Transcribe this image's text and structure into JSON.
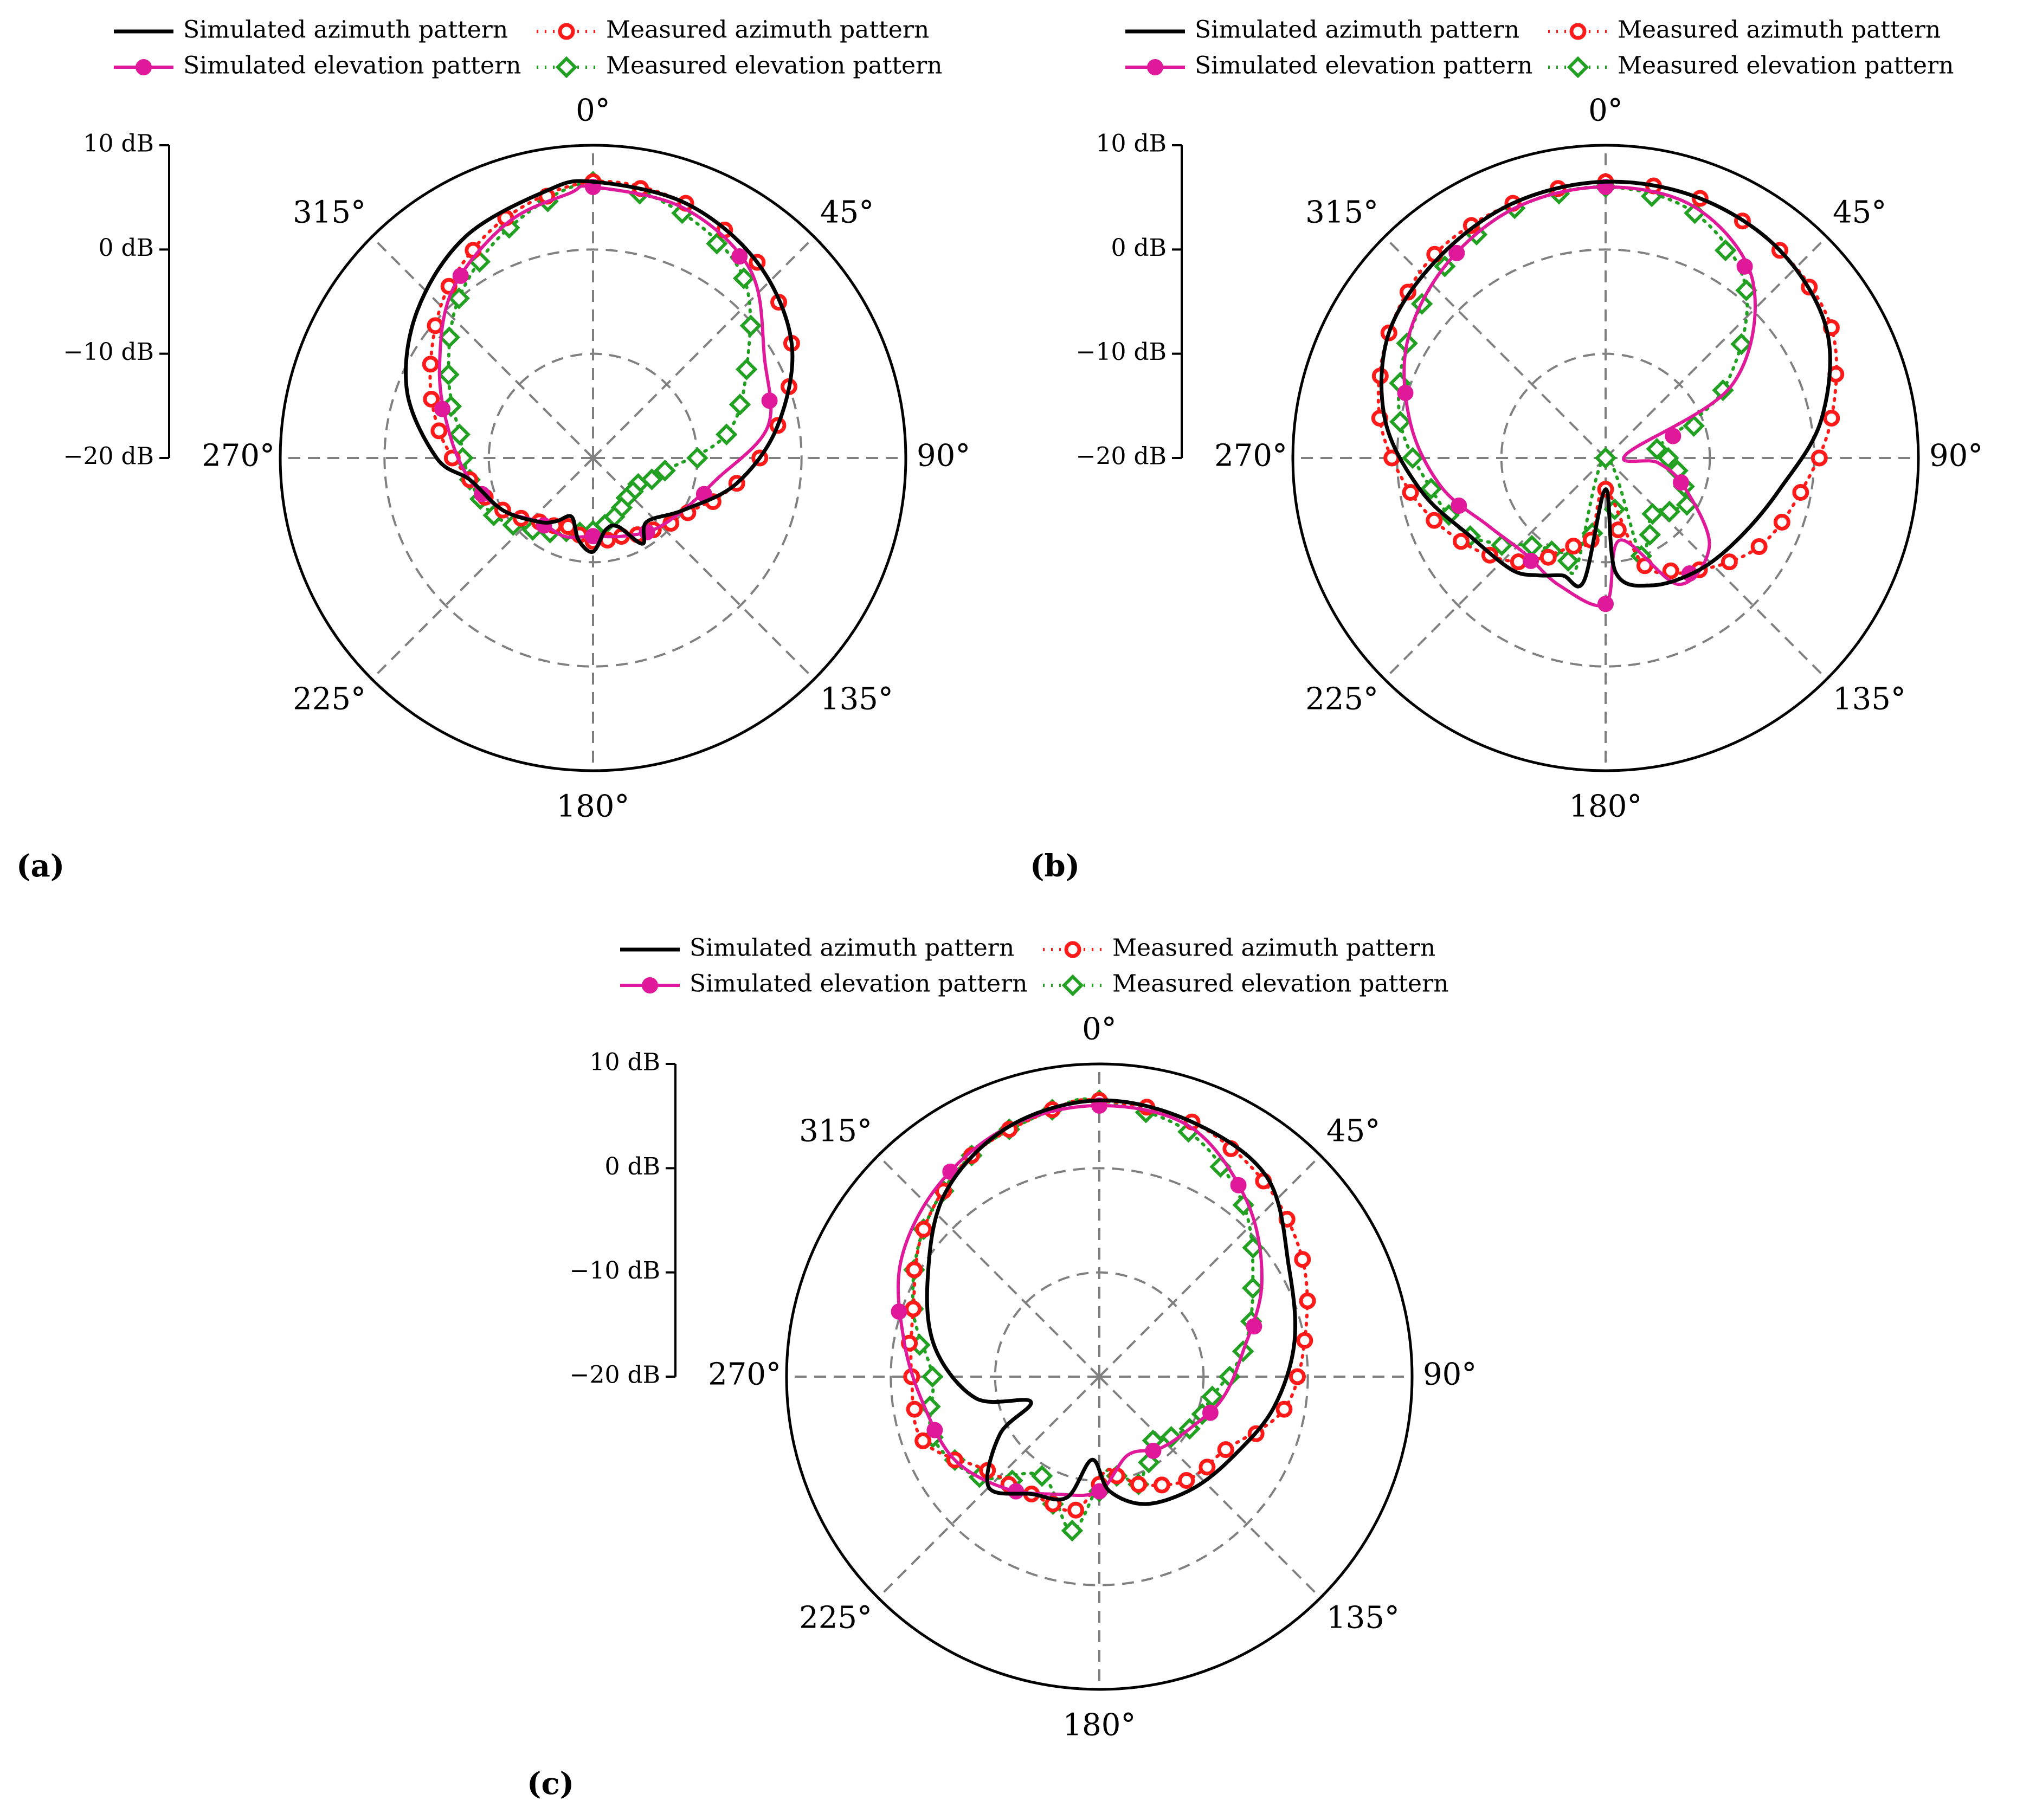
{
  "legend": {
    "sim_az": "Simulated azimuth pattern",
    "sim_el": "Simulated elevation pattern",
    "meas_az": "Measured azimuth pattern",
    "meas_el": "Measured elevation pattern"
  },
  "colors": {
    "sim_az": "#000000",
    "sim_el": "#e0199a",
    "meas_az": "#ff1a1a",
    "meas_el": "#22a022",
    "grid": "#808080"
  },
  "chart_data": [
    {
      "panel": "(a)",
      "type": "polar-line",
      "r_axis": {
        "min_db": -20,
        "max_db": 10,
        "ticks": [
          "10 dB",
          "0 dB",
          "−10 dB",
          "−20 dB"
        ]
      },
      "angle_ticks": [
        "0°",
        "45°",
        "90°",
        "135°",
        "180°",
        "225°",
        "270°",
        "315°"
      ],
      "series": [
        {
          "key": "sim_az",
          "points": [
            [
              0,
              6.5
            ],
            [
              20,
              6
            ],
            [
              40,
              4.5
            ],
            [
              60,
              2
            ],
            [
              80,
              -2
            ],
            [
              100,
              -6
            ],
            [
              120,
              -10
            ],
            [
              140,
              -12
            ],
            [
              150,
              -10.5
            ],
            [
              160,
              -13
            ],
            [
              170,
              -13
            ],
            [
              180,
              -11
            ],
            [
              190,
              -12
            ],
            [
              200,
              -14
            ],
            [
              210,
              -13
            ],
            [
              220,
              -12
            ],
            [
              240,
              -10
            ],
            [
              260,
              -8
            ],
            [
              270,
              -5
            ],
            [
              290,
              -1
            ],
            [
              310,
              2
            ],
            [
              330,
              4.5
            ],
            [
              350,
              6
            ]
          ]
        },
        {
          "key": "sim_el",
          "points": [
            [
              0,
              6
            ],
            [
              20,
              5.5
            ],
            [
              40,
              3.5
            ],
            [
              60,
              -1
            ],
            [
              80,
              -3
            ],
            [
              100,
              -8
            ],
            [
              120,
              -10
            ],
            [
              140,
              -11
            ],
            [
              160,
              -12
            ],
            [
              180,
              -12.5
            ],
            [
              200,
              -12
            ],
            [
              220,
              -12
            ],
            [
              240,
              -10
            ],
            [
              260,
              -8
            ],
            [
              280,
              -6
            ],
            [
              300,
              -3
            ],
            [
              320,
              1
            ],
            [
              340,
              4
            ],
            [
              355,
              5.5
            ]
          ]
        },
        {
          "key": "meas_az",
          "points": [
            [
              0,
              6.5
            ],
            [
              20,
              6
            ],
            [
              40,
              4.5
            ],
            [
              60,
              2
            ],
            [
              80,
              -2
            ],
            [
              100,
              -6
            ],
            [
              120,
              -9.5
            ],
            [
              140,
              -11
            ],
            [
              160,
              -12
            ],
            [
              180,
              -12
            ],
            [
              200,
              -13
            ],
            [
              220,
              -12
            ],
            [
              240,
              -10
            ],
            [
              260,
              -8
            ],
            [
              280,
              -5
            ],
            [
              300,
              -2
            ],
            [
              320,
              1.5
            ],
            [
              340,
              4.5
            ]
          ]
        },
        {
          "key": "meas_el",
          "points": [
            [
              0,
              6.5
            ],
            [
              20,
              5
            ],
            [
              40,
              2.5
            ],
            [
              60,
              -3
            ],
            [
              80,
              -7
            ],
            [
              100,
              -13
            ],
            [
              120,
              -15
            ],
            [
              140,
              -15
            ],
            [
              160,
              -14
            ],
            [
              180,
              -13
            ],
            [
              200,
              -12.5
            ],
            [
              220,
              -11
            ],
            [
              240,
              -9
            ],
            [
              260,
              -8
            ],
            [
              280,
              -7
            ],
            [
              300,
              -4
            ],
            [
              320,
              0
            ],
            [
              340,
              3.5
            ]
          ]
        }
      ]
    },
    {
      "panel": "(b)",
      "type": "polar-line",
      "r_axis": {
        "min_db": -20,
        "max_db": 10,
        "ticks": [
          "10 dB",
          "0 dB",
          "−10 dB",
          "−20 dB"
        ]
      },
      "angle_ticks": [
        "0°",
        "45°",
        "90°",
        "135°",
        "180°",
        "225°",
        "270°",
        "315°"
      ],
      "series": [
        {
          "key": "sim_az",
          "points": [
            [
              0,
              6.5
            ],
            [
              20,
              6.5
            ],
            [
              40,
              6
            ],
            [
              60,
              4.5
            ],
            [
              80,
              1
            ],
            [
              100,
              -3
            ],
            [
              120,
              -5
            ],
            [
              140,
              -6
            ],
            [
              160,
              -7
            ],
            [
              175,
              -9
            ],
            [
              180,
              -17
            ],
            [
              190,
              -8
            ],
            [
              200,
              -8
            ],
            [
              210,
              -7
            ],
            [
              220,
              -6
            ],
            [
              240,
              -5
            ],
            [
              260,
              -2
            ],
            [
              280,
              1.5
            ],
            [
              300,
              4
            ],
            [
              320,
              5
            ],
            [
              340,
              6
            ]
          ]
        },
        {
          "key": "sim_el",
          "points": [
            [
              0,
              6
            ],
            [
              20,
              5.5
            ],
            [
              40,
              2
            ],
            [
              60,
              -6
            ],
            [
              80,
              -18
            ],
            [
              95,
              -15
            ],
            [
              110,
              -12
            ],
            [
              130,
              -7
            ],
            [
              150,
              -6
            ],
            [
              170,
              -12
            ],
            [
              180,
              -6
            ],
            [
              200,
              -7
            ],
            [
              220,
              -8
            ],
            [
              240,
              -7
            ],
            [
              260,
              -4
            ],
            [
              280,
              -1
            ],
            [
              300,
              2
            ],
            [
              320,
              4
            ],
            [
              340,
              5.5
            ]
          ]
        },
        {
          "key": "meas_az",
          "points": [
            [
              0,
              6.5
            ],
            [
              20,
              6.5
            ],
            [
              40,
              6
            ],
            [
              60,
              5
            ],
            [
              80,
              2
            ],
            [
              100,
              -1
            ],
            [
              120,
              -3
            ],
            [
              140,
              -6
            ],
            [
              160,
              -9
            ],
            [
              180,
              -17
            ],
            [
              190,
              -12
            ],
            [
              200,
              -11
            ],
            [
              220,
              -7
            ],
            [
              240,
              -4
            ],
            [
              260,
              -1
            ],
            [
              280,
              2
            ],
            [
              300,
              4
            ],
            [
              320,
              5.5
            ],
            [
              340,
              6
            ]
          ]
        },
        {
          "key": "meas_el",
          "points": [
            [
              0,
              6
            ],
            [
              20,
              5
            ],
            [
              40,
              1
            ],
            [
              60,
              -7
            ],
            [
              80,
              -15
            ],
            [
              100,
              -13
            ],
            [
              120,
              -11
            ],
            [
              140,
              -13
            ],
            [
              160,
              -10
            ],
            [
              180,
              -20
            ],
            [
              195,
              -9
            ],
            [
              205,
              -10
            ],
            [
              220,
              -9
            ],
            [
              240,
              -5
            ],
            [
              260,
              -3
            ],
            [
              280,
              0
            ],
            [
              300,
              2
            ],
            [
              320,
              4
            ],
            [
              340,
              5.5
            ]
          ]
        }
      ]
    },
    {
      "panel": "(c)",
      "type": "polar-line",
      "r_axis": {
        "min_db": -20,
        "max_db": 10,
        "ticks": [
          "10 dB",
          "0 dB",
          "−10 dB",
          "−20 dB"
        ]
      },
      "angle_ticks": [
        "0°",
        "45°",
        "90°",
        "135°",
        "180°",
        "225°",
        "270°",
        "315°"
      ],
      "series": [
        {
          "key": "sim_az",
          "points": [
            [
              0,
              6.5
            ],
            [
              20,
              6
            ],
            [
              40,
              5
            ],
            [
              60,
              1
            ],
            [
              80,
              -1
            ],
            [
              100,
              -3
            ],
            [
              120,
              -5
            ],
            [
              140,
              -6
            ],
            [
              160,
              -7
            ],
            [
              175,
              -9
            ],
            [
              185,
              -12
            ],
            [
              195,
              -8
            ],
            [
              210,
              -7
            ],
            [
              225,
              -5
            ],
            [
              240,
              -9
            ],
            [
              250,
              -13
            ],
            [
              260,
              -8
            ],
            [
              280,
              -4
            ],
            [
              300,
              -1
            ],
            [
              320,
              3
            ],
            [
              340,
              5.5
            ]
          ]
        },
        {
          "key": "sim_el",
          "points": [
            [
              0,
              6
            ],
            [
              20,
              5.5
            ],
            [
              40,
              2
            ],
            [
              60,
              -2
            ],
            [
              80,
              -6
            ],
            [
              100,
              -8
            ],
            [
              120,
              -10
            ],
            [
              140,
              -11
            ],
            [
              160,
              -12
            ],
            [
              180,
              -9
            ],
            [
              200,
              -8
            ],
            [
              220,
              -6
            ],
            [
              240,
              -4
            ],
            [
              260,
              -3
            ],
            [
              280,
              -1
            ],
            [
              300,
              2
            ],
            [
              320,
              4
            ],
            [
              340,
              5.5
            ]
          ]
        },
        {
          "key": "meas_az",
          "points": [
            [
              0,
              6.5
            ],
            [
              20,
              6
            ],
            [
              40,
              4.5
            ],
            [
              60,
              2.5
            ],
            [
              80,
              0
            ],
            [
              100,
              -2
            ],
            [
              120,
              -6
            ],
            [
              140,
              -7
            ],
            [
              160,
              -9
            ],
            [
              175,
              -11
            ],
            [
              190,
              -7
            ],
            [
              210,
              -7
            ],
            [
              230,
              -6
            ],
            [
              250,
              -2
            ],
            [
              270,
              -2
            ],
            [
              290,
              -1
            ],
            [
              310,
              2
            ],
            [
              330,
              4.5
            ],
            [
              350,
              6
            ]
          ]
        },
        {
          "key": "meas_el",
          "points": [
            [
              0,
              6.5
            ],
            [
              20,
              5
            ],
            [
              40,
              1.5
            ],
            [
              60,
              -3
            ],
            [
              80,
              -6
            ],
            [
              100,
              -9
            ],
            [
              120,
              -10
            ],
            [
              140,
              -12
            ],
            [
              160,
              -9
            ],
            [
              175,
              -11
            ],
            [
              190,
              -5
            ],
            [
              210,
              -9
            ],
            [
              230,
              -5
            ],
            [
              250,
              -3
            ],
            [
              270,
              -4
            ],
            [
              290,
              -1
            ],
            [
              310,
              2
            ],
            [
              330,
              4.5
            ],
            [
              350,
              6
            ]
          ]
        }
      ]
    }
  ],
  "labels": {
    "a": "(a)",
    "b": "(b)",
    "c": "(c)"
  }
}
